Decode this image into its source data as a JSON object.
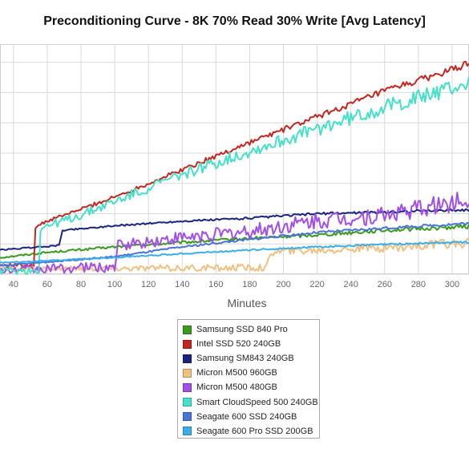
{
  "chart_data": {
    "type": "line",
    "title": "Preconditioning Curve - 8K 70% Read 30% Write [Avg Latency]",
    "xlabel": "Minutes",
    "ylabel": "",
    "x_ticks": [
      40,
      60,
      80,
      100,
      120,
      140,
      160,
      180,
      200,
      220,
      240,
      260,
      280,
      300
    ],
    "xlim": [
      32,
      310
    ],
    "ylim": [
      0,
      7.6
    ],
    "grid": true,
    "legend_position": "bottom-center",
    "series": [
      {
        "name": "Samsung SSD 840 Pro",
        "color": "#3a9a1e",
        "points": [
          [
            32,
            0.55
          ],
          [
            60,
            0.72
          ],
          [
            100,
            0.9
          ],
          [
            140,
            1.05
          ],
          [
            180,
            1.18
          ],
          [
            220,
            1.3
          ],
          [
            260,
            1.45
          ],
          [
            300,
            1.55
          ],
          [
            310,
            1.58
          ]
        ],
        "noise": 0.03
      },
      {
        "name": "Intel SSD 520 240GB",
        "color": "#c42620",
        "points": [
          [
            32,
            0.3
          ],
          [
            52,
            0.3
          ],
          [
            53,
            1.55
          ],
          [
            60,
            1.75
          ],
          [
            100,
            2.55
          ],
          [
            140,
            3.45
          ],
          [
            180,
            4.35
          ],
          [
            220,
            5.2
          ],
          [
            260,
            6.05
          ],
          [
            300,
            6.75
          ],
          [
            310,
            6.95
          ]
        ],
        "noise": 0.05
      },
      {
        "name": "Samsung SM843 240GB",
        "color": "#1a237e",
        "points": [
          [
            32,
            0.8
          ],
          [
            67,
            0.95
          ],
          [
            69,
            1.45
          ],
          [
            100,
            1.6
          ],
          [
            140,
            1.75
          ],
          [
            180,
            1.85
          ],
          [
            220,
            2.0
          ],
          [
            260,
            2.05
          ],
          [
            300,
            2.12
          ],
          [
            310,
            2.12
          ]
        ],
        "noise": 0.02
      },
      {
        "name": "Micron M500 960GB",
        "color": "#f0c080",
        "points": [
          [
            32,
            0.18
          ],
          [
            150,
            0.2
          ],
          [
            190,
            0.22
          ],
          [
            193,
            0.75
          ],
          [
            220,
            0.8
          ],
          [
            260,
            0.88
          ],
          [
            300,
            1.0
          ],
          [
            310,
            1.05
          ]
        ],
        "noise": 0.07
      },
      {
        "name": "Micron M500 480GB",
        "color": "#a24ee8",
        "points": [
          [
            32,
            0.12
          ],
          [
            100,
            0.25
          ],
          [
            102,
            0.95
          ],
          [
            140,
            1.2
          ],
          [
            180,
            1.4
          ],
          [
            220,
            1.75
          ],
          [
            260,
            1.95
          ],
          [
            300,
            2.35
          ],
          [
            310,
            2.45
          ]
        ],
        "noise": 0.14
      },
      {
        "name": "Smart CloudSpeed 500 240GB",
        "color": "#45e0c8",
        "points": [
          [
            32,
            0.12
          ],
          [
            55,
            0.12
          ],
          [
            56,
            1.52
          ],
          [
            80,
            1.95
          ],
          [
            100,
            2.4
          ],
          [
            140,
            3.3
          ],
          [
            180,
            4.05
          ],
          [
            220,
            4.8
          ],
          [
            260,
            5.5
          ],
          [
            300,
            6.15
          ],
          [
            310,
            6.3
          ]
        ],
        "noise": 0.12
      },
      {
        "name": "Seagate 600 SSD 240GB",
        "color": "#4a74d8",
        "points": [
          [
            32,
            0.28
          ],
          [
            100,
            0.58
          ],
          [
            140,
            0.9
          ],
          [
            180,
            1.15
          ],
          [
            220,
            1.38
          ],
          [
            260,
            1.52
          ],
          [
            300,
            1.65
          ],
          [
            310,
            1.68
          ]
        ],
        "noise": 0.02
      },
      {
        "name": "Seagate 600 Pro SSD 200GB",
        "color": "#3aaeea",
        "points": [
          [
            32,
            0.38
          ],
          [
            100,
            0.55
          ],
          [
            140,
            0.68
          ],
          [
            180,
            0.8
          ],
          [
            220,
            0.9
          ],
          [
            260,
            0.98
          ],
          [
            300,
            1.05
          ],
          [
            310,
            1.06
          ]
        ],
        "noise": 0.015
      }
    ]
  }
}
